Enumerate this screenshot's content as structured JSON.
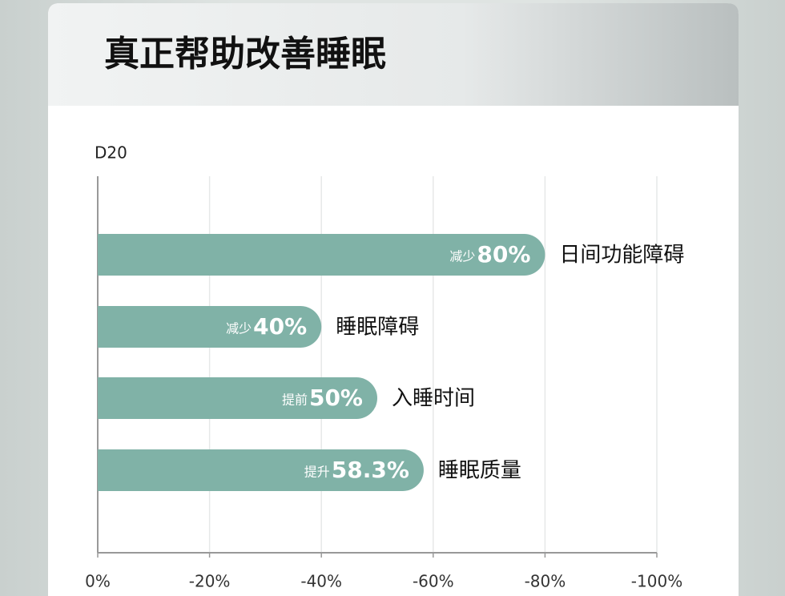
{
  "chart_data": {
    "type": "bar",
    "orientation": "horizontal",
    "title": "真正帮助改善睡眠",
    "subtitle": "D20",
    "categories": [
      "日间功能障碍",
      "睡眠障碍",
      "入睡时间",
      "睡眠质量"
    ],
    "values": [
      -80,
      -40,
      -50,
      -58.3
    ],
    "value_labels": [
      "80%",
      "40%",
      "50%",
      "58.3%"
    ],
    "value_prefixes": [
      "减少",
      "减少",
      "提前",
      "提升"
    ],
    "color": "#80b2a7",
    "xlim": [
      0,
      -100
    ],
    "xticks": [
      {
        "value": 0,
        "label": "0%"
      },
      {
        "value": -20,
        "label": "-20%"
      },
      {
        "value": -40,
        "label": "-40%"
      },
      {
        "value": -60,
        "label": "-60%"
      },
      {
        "value": -80,
        "label": "-80%"
      },
      {
        "value": -100,
        "label": "-100%"
      }
    ],
    "grid": true
  }
}
